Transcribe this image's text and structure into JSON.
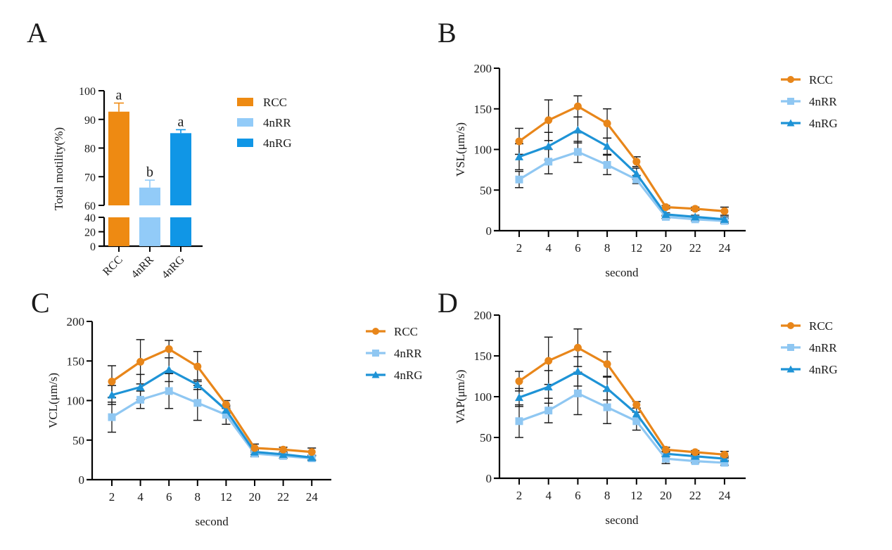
{
  "colors": {
    "RCC": "#E8861A",
    "4nRR": "#8FC7F2",
    "4nRG": "#1E93D6",
    "bar_RCC": "#EE8A12",
    "bar_4nRR": "#92CBF8",
    "bar_4nRG": "#1096E6",
    "axis": "#000000",
    "error": "#1a1a1a"
  },
  "chart_data": [
    {
      "panel": "A",
      "type": "bar",
      "title": "",
      "xlabel": "",
      "ylabel": "Total motility(%)",
      "categories": [
        "RCC",
        "4nRR",
        "4nRG"
      ],
      "values": [
        92.7,
        66.2,
        85.2
      ],
      "errors": [
        3.0,
        2.6,
        1.2
      ],
      "significance": [
        "a",
        "b",
        "a"
      ],
      "axis_break": {
        "lower": [
          0,
          40
        ],
        "upper": [
          60,
          100
        ]
      },
      "yticks_lower": [
        "0",
        "20",
        "40"
      ],
      "yticks_upper": [
        "60",
        "70",
        "80",
        "90",
        "100"
      ],
      "legend": [
        "RCC",
        "4nRR",
        "4nRG"
      ],
      "legend_position": "right"
    },
    {
      "panel": "B",
      "type": "line",
      "xlabel": "second",
      "ylabel": "VSL(μm/s)",
      "x": [
        "2",
        "4",
        "6",
        "8",
        "12",
        "20",
        "22",
        "24"
      ],
      "ylim": [
        0,
        200
      ],
      "yticks": [
        "0",
        "50",
        "100",
        "150",
        "200"
      ],
      "series": [
        {
          "name": "RCC",
          "marker": "circle",
          "values": [
            110,
            136,
            153,
            132,
            85,
            29,
            27,
            24
          ],
          "errors": [
            16,
            25,
            13,
            18,
            6,
            2,
            2,
            5
          ]
        },
        {
          "name": "4nRR",
          "marker": "square",
          "values": [
            63,
            85,
            97,
            81,
            63,
            17,
            14,
            12
          ],
          "errors": [
            10,
            15,
            13,
            12,
            5,
            2,
            2,
            3
          ]
        },
        {
          "name": "4nRG",
          "marker": "triangle",
          "values": [
            91,
            104,
            124,
            104,
            70,
            20,
            17,
            14
          ],
          "errors": [
            16,
            17,
            16,
            10,
            7,
            2,
            2,
            3
          ]
        }
      ],
      "legend": [
        "RCC",
        "4nRR",
        "4nRG"
      ],
      "legend_position": "right"
    },
    {
      "panel": "C",
      "type": "line",
      "xlabel": "second",
      "ylabel": "VCL(μm/s)",
      "x": [
        "2",
        "4",
        "6",
        "8",
        "12",
        "20",
        "22",
        "24"
      ],
      "ylim": [
        0,
        200
      ],
      "yticks": [
        "0",
        "50",
        "100",
        "150",
        "200"
      ],
      "series": [
        {
          "name": "RCC",
          "marker": "circle",
          "values": [
            124,
            149,
            165,
            143,
            95,
            40,
            38,
            35
          ],
          "errors": [
            20,
            28,
            11,
            19,
            5,
            5,
            3,
            5
          ]
        },
        {
          "name": "4nRR",
          "marker": "square",
          "values": [
            79,
            101,
            112,
            97,
            82,
            33,
            30,
            27
          ],
          "errors": [
            19,
            11,
            22,
            22,
            12,
            4,
            3,
            3
          ]
        },
        {
          "name": "4nRG",
          "marker": "triangle",
          "values": [
            107,
            117,
            139,
            120,
            88,
            35,
            32,
            28
          ],
          "errors": [
            12,
            16,
            15,
            6,
            4,
            3,
            2,
            3
          ]
        }
      ],
      "legend": [
        "RCC",
        "4nRR",
        "4nRG"
      ],
      "legend_position": "right"
    },
    {
      "panel": "D",
      "type": "line",
      "xlabel": "second",
      "ylabel": "VAP(μm/s)",
      "x": [
        "2",
        "4",
        "6",
        "8",
        "12",
        "20",
        "22",
        "24"
      ],
      "ylim": [
        0,
        200
      ],
      "yticks": [
        "0",
        "50",
        "100",
        "150",
        "200"
      ],
      "series": [
        {
          "name": "RCC",
          "marker": "circle",
          "values": [
            119,
            144,
            160,
            140,
            90,
            35,
            32,
            29
          ],
          "errors": [
            12,
            29,
            23,
            15,
            4,
            3,
            2,
            4
          ]
        },
        {
          "name": "4nRR",
          "marker": "square",
          "values": [
            70,
            83,
            104,
            87,
            70,
            24,
            21,
            19
          ],
          "errors": [
            20,
            15,
            26,
            20,
            11,
            6,
            2,
            3
          ]
        },
        {
          "name": "4nRG",
          "marker": "triangle",
          "values": [
            99,
            112,
            131,
            110,
            79,
            30,
            27,
            24
          ],
          "errors": [
            11,
            20,
            18,
            14,
            7,
            3,
            2,
            3
          ]
        }
      ],
      "legend": [
        "RCC",
        "4nRR",
        "4nRG"
      ],
      "legend_position": "right"
    }
  ],
  "panel_labels": [
    "A",
    "B",
    "C",
    "D"
  ]
}
